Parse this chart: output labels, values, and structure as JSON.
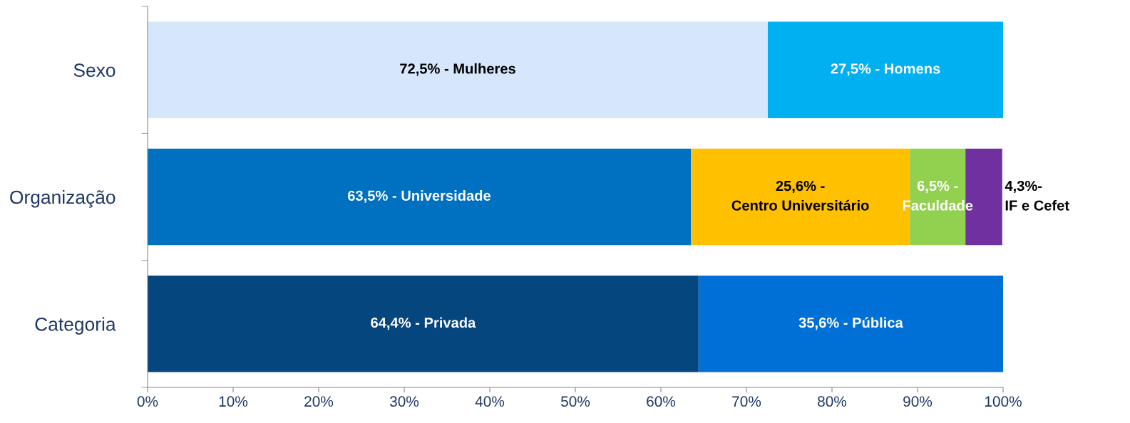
{
  "chart_data": {
    "type": "bar",
    "orientation": "horizontal",
    "stacked": true,
    "categories": [
      "Sexo",
      "Organização",
      "Categoria"
    ],
    "series": [
      {
        "colors": [
          "#d6e6fb",
          "#0070c0",
          "#06467f"
        ],
        "values": [
          72.5,
          63.5,
          64.4
        ],
        "value_labels": [
          "72,5% - Mulheres",
          "63,5% - Universidade",
          "64,4% - Privada"
        ]
      },
      {
        "colors": [
          "#00b0f0",
          "#ffc000",
          "#0070d6"
        ],
        "values": [
          27.5,
          25.6,
          35.6
        ],
        "value_labels": [
          "27,5% - Homens",
          "25,6% -\nCentro Universitário",
          "35,6% - Pública"
        ]
      },
      {
        "color": "#92d050",
        "values": [
          null,
          6.5,
          null
        ],
        "value_labels": [
          null,
          "6,5% -\nFaculdade",
          null
        ]
      },
      {
        "color": "#7030a0",
        "values": [
          null,
          4.3,
          null
        ],
        "value_labels": [
          null,
          "4,3%-\nIF e Cefet",
          null
        ]
      }
    ],
    "xlim": [
      0,
      100
    ],
    "xticks": [
      {
        "value": 0,
        "label": "0%"
      },
      {
        "value": 10,
        "label": "10%"
      },
      {
        "value": 20,
        "label": "20%"
      },
      {
        "value": 30,
        "label": "30%"
      },
      {
        "value": 40,
        "label": "40%"
      },
      {
        "value": 50,
        "label": "50%"
      },
      {
        "value": 60,
        "label": "60%"
      },
      {
        "value": 70,
        "label": "70%"
      },
      {
        "value": 80,
        "label": "80%"
      },
      {
        "value": 90,
        "label": "90%"
      },
      {
        "value": 100,
        "label": "100%"
      }
    ],
    "grid": false,
    "legend": false
  }
}
